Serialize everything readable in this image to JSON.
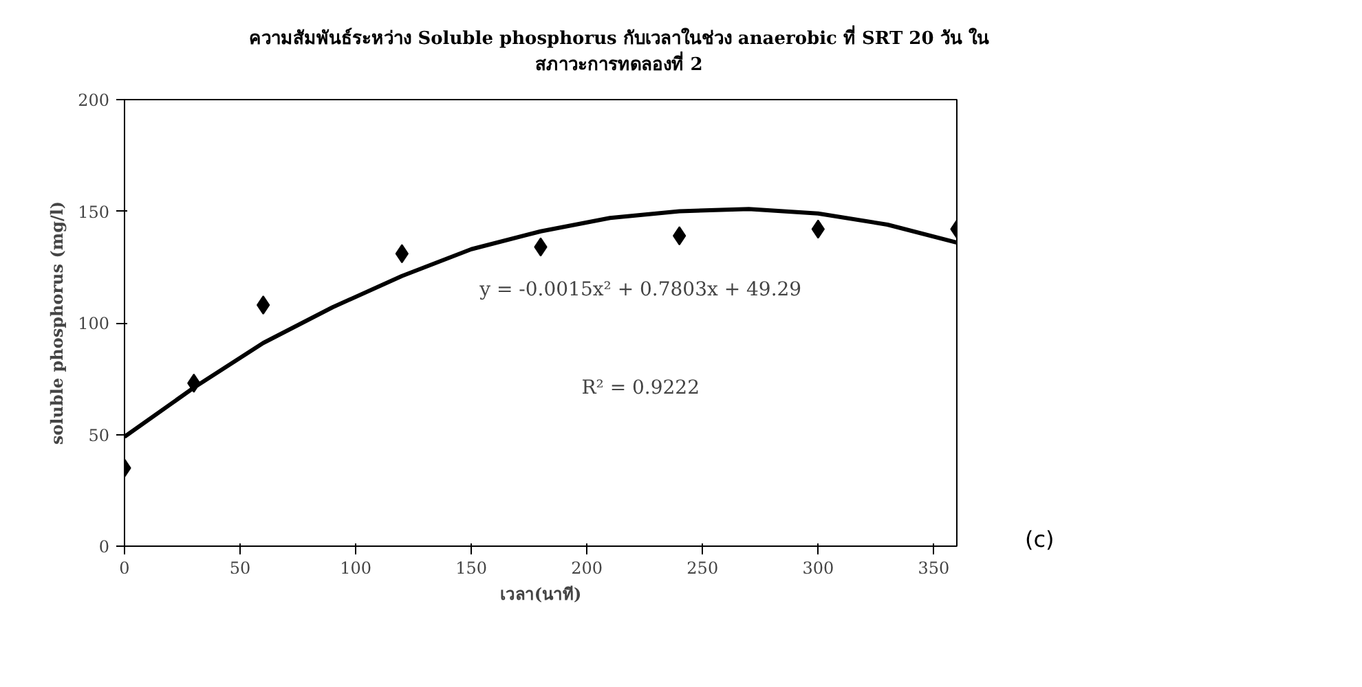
{
  "chart_data": {
    "type": "scatter",
    "title": "ความสัมพันธ์ระหว่าง Soluble phosphorus กับเวลาในช่วง anaerobic ที่ SRT 20 วัน ในสภาวะการทดลองที่ 2",
    "xlabel": "เวลา(นาที)",
    "ylabel": "soluble phosphorus (mg/l)",
    "x": [
      0,
      30,
      60,
      120,
      180,
      240,
      300,
      360
    ],
    "series": [
      {
        "color": "#000000",
        "marker": "diamond",
        "values": [
          35,
          73,
          108,
          131,
          134,
          139,
          142,
          142
        ]
      },
      {
        "type": "line",
        "color": "#000000",
        "marker": "none",
        "line_style": "solid",
        "x": [
          0,
          30,
          60,
          90,
          120,
          150,
          180,
          210,
          240,
          270,
          300,
          330,
          360
        ],
        "values": [
          49,
          71,
          91,
          107,
          121,
          133,
          141,
          147,
          150,
          151,
          149,
          144,
          136
        ]
      }
    ],
    "xlim": [
      0,
      360
    ],
    "xticks": [
      0,
      50,
      100,
      150,
      200,
      250,
      300,
      350
    ],
    "ylim": [
      0,
      200
    ],
    "yticks": [
      0,
      50,
      100,
      150,
      200
    ],
    "grid": false,
    "annotations": [
      "y = -0.0015x² + 0.7803x + 49.29",
      "R² = 0.9222",
      "(c)"
    ]
  }
}
